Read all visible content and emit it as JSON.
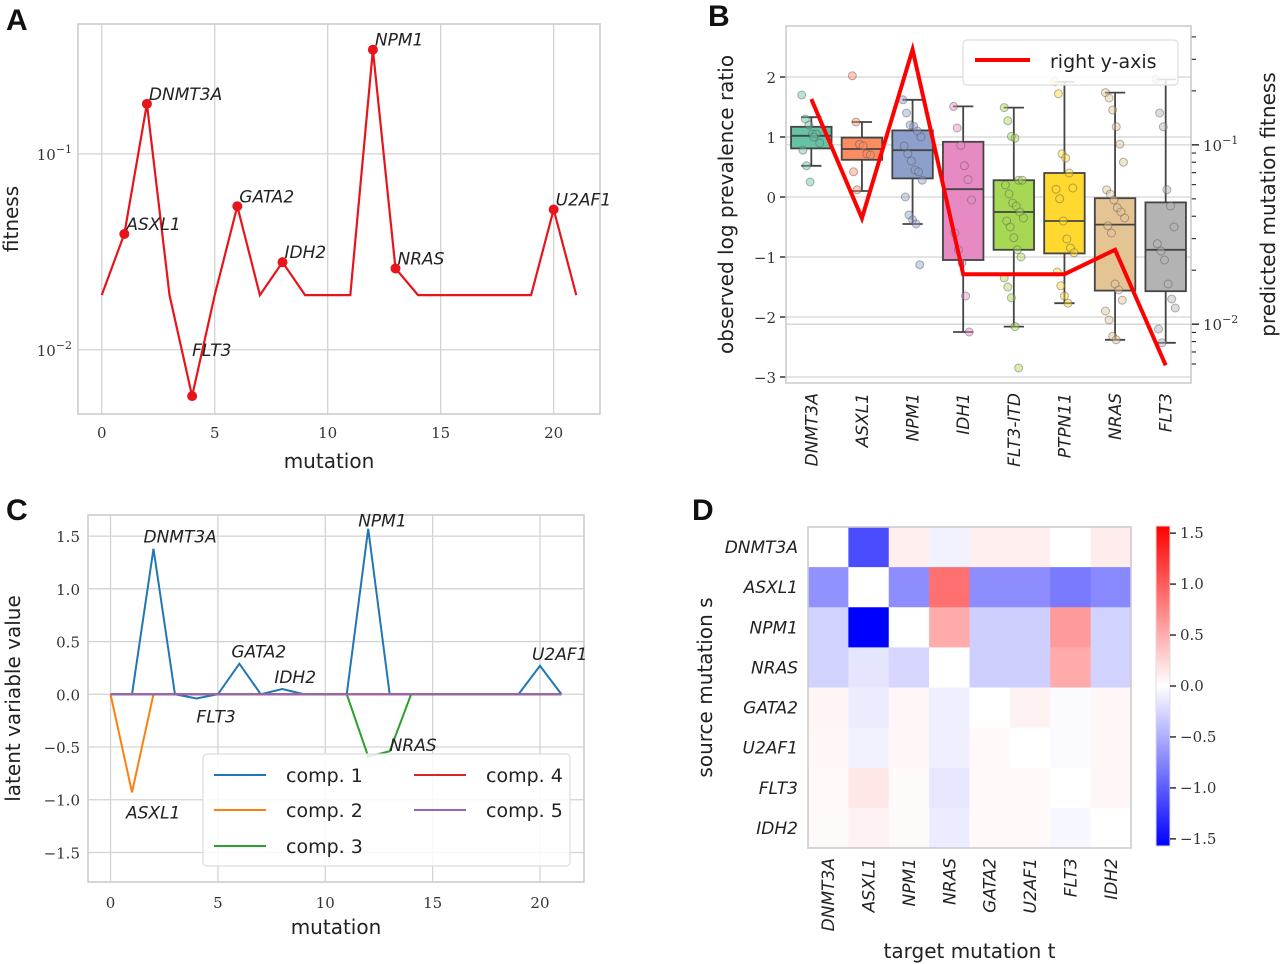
{
  "figure": {
    "panels": [
      "A",
      "B",
      "C",
      "D"
    ]
  },
  "chart_data": [
    {
      "id": "A",
      "type": "line",
      "title": "",
      "xlabel": "mutation",
      "ylabel": "fitness",
      "yscale": "log",
      "xlim": [
        -1.05,
        22.05
      ],
      "ylim": [
        0.0047,
        0.46
      ],
      "xticks": [
        0,
        5,
        10,
        15,
        20
      ],
      "xtick_labels": [
        "0",
        "5",
        "10",
        "15",
        "20"
      ],
      "yticks": [
        0.01,
        0.1
      ],
      "ytick_labels": [
        "10⁻²",
        "10⁻¹"
      ],
      "grid": true,
      "color": "#e8141b",
      "x": [
        0,
        1,
        2,
        3,
        4,
        5,
        6,
        7,
        8,
        9,
        10,
        11,
        12,
        13,
        14,
        15,
        16,
        17,
        18,
        19,
        20,
        21
      ],
      "y": [
        0.019,
        0.039,
        0.18,
        0.019,
        0.0058,
        0.019,
        0.054,
        0.019,
        0.028,
        0.019,
        0.019,
        0.019,
        0.34,
        0.026,
        0.019,
        0.019,
        0.019,
        0.019,
        0.019,
        0.019,
        0.052,
        0.019
      ],
      "markers": [
        {
          "x": 1,
          "label": "ASXL1"
        },
        {
          "x": 2,
          "label": "DNMT3A"
        },
        {
          "x": 4,
          "label": "FLT3"
        },
        {
          "x": 6,
          "label": "GATA2"
        },
        {
          "x": 8,
          "label": "IDH2"
        },
        {
          "x": 12,
          "label": "NPM1"
        },
        {
          "x": 13,
          "label": "NRAS"
        },
        {
          "x": 20,
          "label": "U2AF1"
        }
      ]
    },
    {
      "id": "B",
      "type": "box",
      "title": "",
      "xlabel": "",
      "ylabel": "observed log prevalence ratio",
      "ylabel_right": "predicted mutation fitness",
      "ylim": [
        -3.1,
        2.85
      ],
      "yticks": [
        -3,
        -2,
        -1,
        0,
        1,
        2
      ],
      "ytick_labels": [
        "−3",
        "−2",
        "−1",
        "0",
        "1",
        "2"
      ],
      "right_yscale": "log",
      "right_ylim": [
        0.0047,
        0.46
      ],
      "right_yticks": [
        0.01,
        0.1
      ],
      "right_ytick_labels": [
        "10⁻²",
        "10⁻¹"
      ],
      "grid": true,
      "legend": {
        "label": "right y-axis",
        "position": "top-right",
        "color": "#ff0000"
      },
      "categories": [
        "DNMT3A",
        "ASXL1",
        "NPM1",
        "IDH1",
        "FLT3-ITD",
        "PTPN11",
        "NRAS",
        "FLT3"
      ],
      "boxes": [
        {
          "q1": 0.81,
          "median": 1.02,
          "q3": 1.17,
          "whisker_low": 0.52,
          "whisker_high": 1.33,
          "color": "#66c2a5",
          "points": [
            1.7,
            1.3,
            1.2,
            1.05,
            1.05,
            0.9,
            0.78,
            0.52,
            0.25,
            1.0
          ]
        },
        {
          "q1": 0.62,
          "median": 0.8,
          "q3": 0.99,
          "whisker_low": 0.1,
          "whisker_high": 1.25,
          "color": "#fc8d62",
          "points": [
            2.02,
            1.25,
            0.88,
            0.85,
            0.72,
            0.7,
            0.42,
            0.12
          ]
        },
        {
          "q1": 0.31,
          "median": 0.78,
          "q3": 1.11,
          "whisker_low": -0.45,
          "whisker_high": 1.62,
          "color": "#8da0cb",
          "points": [
            1.62,
            1.4,
            1.2,
            1.18,
            1.1,
            1.0,
            0.85,
            0.72,
            0.6,
            0.45,
            0.42,
            0.28,
            0.0,
            -0.3,
            -0.38,
            -0.45,
            -1.13
          ]
        },
        {
          "q1": -1.05,
          "median": 0.13,
          "q3": 0.92,
          "whisker_low": -2.25,
          "whisker_high": 1.51,
          "color": "#e78ac3",
          "points": [
            1.51,
            1.15,
            0.86,
            0.52,
            0.29,
            -0.05,
            -0.6,
            -0.88,
            -1.1,
            -1.65,
            -2.25
          ]
        },
        {
          "q1": -0.88,
          "median": -0.25,
          "q3": 0.28,
          "whisker_low": -2.16,
          "whisker_high": 1.49,
          "color": "#a6d854",
          "points": [
            1.49,
            1.27,
            1.01,
            0.98,
            0.28,
            0.28,
            0.2,
            0.05,
            -0.1,
            -0.15,
            -0.25,
            -0.35,
            -0.4,
            -0.5,
            -0.68,
            -0.88,
            -1.0,
            -1.35,
            -1.5,
            -1.68,
            -2.16,
            -2.85
          ]
        },
        {
          "q1": -0.94,
          "median": -0.4,
          "q3": 0.4,
          "whisker_low": -1.77,
          "whisker_high": 1.92,
          "color": "#ffd92f",
          "points": [
            1.92,
            1.72,
            0.72,
            0.65,
            0.4,
            0.15,
            0.13,
            -0.03,
            -0.4,
            -0.7,
            -0.85,
            -0.93,
            -1.25,
            -1.48,
            -1.65,
            -1.77
          ]
        },
        {
          "q1": -1.56,
          "median": -0.46,
          "q3": -0.02,
          "whisker_low": -2.38,
          "whisker_high": 1.74,
          "color": "#e5c494",
          "points": [
            1.74,
            1.65,
            1.45,
            1.17,
            0.88,
            0.58,
            0.12,
            0.05,
            -0.05,
            -0.18,
            -0.25,
            -0.35,
            -0.48,
            -0.6,
            -1.45,
            -1.55,
            -1.72,
            -1.9,
            -2.05,
            -2.32,
            -2.38
          ]
        },
        {
          "q1": -1.57,
          "median": -0.88,
          "q3": -0.09,
          "whisker_low": -2.43,
          "whisker_high": 1.96,
          "color": "#b3b3b3",
          "points": [
            1.96,
            1.4,
            1.17,
            0.12,
            -0.15,
            -0.5,
            -0.78,
            -0.9,
            -1.05,
            -1.45,
            -1.7,
            -1.85,
            -2.2,
            -2.43
          ]
        }
      ],
      "line_right_axis": [
        0.18,
        0.039,
        0.34,
        0.019,
        0.019,
        0.019,
        0.026,
        0.0059
      ]
    },
    {
      "id": "C",
      "type": "line",
      "title": "",
      "xlabel": "mutation",
      "ylabel": "latent variable value",
      "xlim": [
        -1.05,
        22.05
      ],
      "ylim": [
        -1.78,
        1.7
      ],
      "xticks": [
        0,
        5,
        10,
        15,
        20
      ],
      "xtick_labels": [
        "0",
        "5",
        "10",
        "15",
        "20"
      ],
      "yticks": [
        -1.5,
        -1.0,
        -0.5,
        0.0,
        0.5,
        1.0,
        1.5
      ],
      "ytick_labels": [
        "−1.5",
        "−1.0",
        "−0.5",
        "0.0",
        "0.5",
        "1.0",
        "1.5"
      ],
      "grid": true,
      "legend_position": "lower-right",
      "x": [
        0,
        1,
        2,
        3,
        4,
        5,
        6,
        7,
        8,
        9,
        10,
        11,
        12,
        13,
        14,
        15,
        16,
        17,
        18,
        19,
        20,
        21
      ],
      "series": [
        {
          "name": "comp. 1",
          "color": "#1f77b4",
          "values": [
            0,
            0,
            1.38,
            0,
            -0.04,
            0,
            0.29,
            0,
            0.05,
            0,
            0,
            0,
            1.57,
            0,
            0,
            0,
            0,
            0,
            0,
            0,
            0.27,
            0
          ]
        },
        {
          "name": "comp. 2",
          "color": "#ff7f0e",
          "values": [
            0,
            -0.93,
            0,
            0,
            0,
            0,
            0,
            0,
            0,
            0,
            0,
            0,
            0,
            0,
            0,
            0,
            0,
            0,
            0,
            0,
            0,
            0
          ]
        },
        {
          "name": "comp. 3",
          "color": "#2ca02c",
          "values": [
            0,
            0,
            0,
            0,
            0,
            0,
            0,
            0,
            0,
            0,
            0,
            0,
            -0.59,
            -0.54,
            0,
            0,
            0,
            0,
            0,
            0,
            0,
            0
          ]
        },
        {
          "name": "comp. 4",
          "color": "#d62728",
          "values": [
            0,
            0,
            0,
            0,
            0,
            0,
            0,
            0,
            0,
            0,
            0,
            0,
            0,
            0,
            0,
            0,
            0,
            0,
            0,
            0,
            0,
            0
          ]
        },
        {
          "name": "comp. 5",
          "color": "#9467bd",
          "values": [
            0,
            0,
            0,
            0,
            0,
            0,
            0,
            0,
            0,
            0,
            0,
            0,
            0,
            0,
            0,
            0,
            0,
            0,
            0,
            0,
            0,
            0
          ]
        }
      ],
      "annotations": [
        {
          "x": 2,
          "y": 1.38,
          "label": "DNMT3A"
        },
        {
          "x": 1,
          "y": -0.93,
          "label": "ASXL1"
        },
        {
          "x": 4,
          "y": -0.04,
          "label": "FLT3"
        },
        {
          "x": 6,
          "y": 0.29,
          "label": "GATA2"
        },
        {
          "x": 8,
          "y": 0.05,
          "label": "IDH2"
        },
        {
          "x": 12,
          "y": 1.57,
          "label": "NPM1"
        },
        {
          "x": 13,
          "y": -0.54,
          "label": "NRAS"
        },
        {
          "x": 20,
          "y": 0.27,
          "label": "U2AF1"
        }
      ]
    },
    {
      "id": "D",
      "type": "heatmap",
      "title": "",
      "xlabel": "target mutation t",
      "ylabel": "source mutation s",
      "x_categories": [
        "DNMT3A",
        "ASXL1",
        "NPM1",
        "NRAS",
        "GATA2",
        "U2AF1",
        "FLT3",
        "IDH2"
      ],
      "y_categories": [
        "DNMT3A",
        "ASXL1",
        "NPM1",
        "NRAS",
        "GATA2",
        "U2AF1",
        "FLT3",
        "IDH2"
      ],
      "colormap": "bwr",
      "vmin": -1.57,
      "vmax": 1.57,
      "colorbar_ticks": [
        1.5,
        1.0,
        0.5,
        0.0,
        -0.5,
        -1.0,
        -1.5
      ],
      "colorbar_tick_labels": [
        "1.5",
        "1.0",
        "0.5",
        "0.0",
        "−0.5",
        "−1.0",
        "−1.5"
      ],
      "values": [
        [
          0.0,
          -1.1,
          0.1,
          -0.08,
          0.1,
          0.1,
          0.0,
          0.12
        ],
        [
          -0.68,
          0.0,
          -0.7,
          0.88,
          -0.7,
          -0.7,
          -0.82,
          -0.73
        ],
        [
          -0.28,
          -1.57,
          0.0,
          0.52,
          -0.3,
          -0.3,
          0.62,
          -0.28
        ],
        [
          -0.28,
          -0.16,
          -0.25,
          0.0,
          -0.3,
          -0.3,
          0.52,
          -0.28
        ],
        [
          0.06,
          -0.12,
          0.05,
          -0.1,
          0.0,
          0.08,
          -0.03,
          0.05
        ],
        [
          0.05,
          -0.08,
          0.05,
          -0.1,
          0.04,
          0.0,
          -0.03,
          0.05
        ],
        [
          0.04,
          0.15,
          0.03,
          -0.15,
          0.04,
          0.04,
          0.0,
          0.05
        ],
        [
          0.03,
          0.08,
          0.03,
          -0.12,
          0.04,
          0.04,
          -0.05,
          0.0
        ]
      ]
    }
  ]
}
